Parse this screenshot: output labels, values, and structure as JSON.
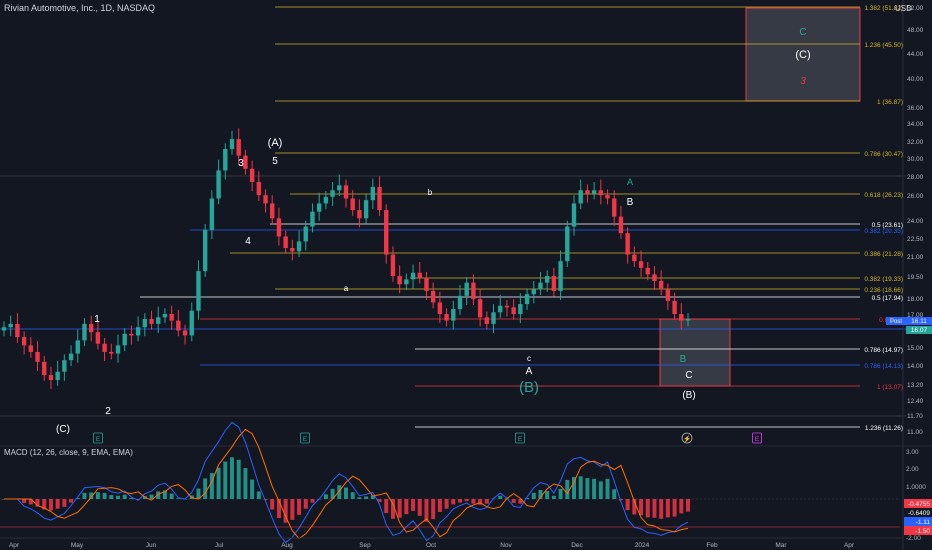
{
  "header": {
    "title": "Rivian Automotive, Inc., 1D, NASDAQ",
    "currency": "USD"
  },
  "macd": {
    "label": "MACD (12, 26, close, 9, EMA, EMA)",
    "readouts": [
      "-0.4755",
      "-0.6409",
      "-1.11",
      "-1.50"
    ],
    "scale": [
      "3.00",
      "2.00",
      "1.0000",
      "0.00",
      "-1.00",
      "-2.00"
    ]
  },
  "price_scale": [
    "52.00",
    "48.00",
    "44.00",
    "40.00",
    "36.00",
    "34.00",
    "32.00",
    "30.00",
    "28.00",
    "26.00",
    "24.00",
    "22.50",
    "21.00",
    "19.50",
    "18.00",
    "17.00",
    "15.00",
    "14.00",
    "13.20",
    "12.40",
    "11.70",
    "11.00"
  ],
  "price_tags": {
    "last": "16.11",
    "post_label": "Post",
    "post": "16.11",
    "close": "16.07"
  },
  "time_axis": [
    "Apr",
    "May",
    "Jun",
    "Jul",
    "Aug",
    "Sep",
    "Oct",
    "Nov",
    "Dec",
    "2024",
    "Feb",
    "Mar",
    "Apr"
  ],
  "fib_levels": [
    {
      "label": "1.382 (51.82)",
      "color": "#d4b629"
    },
    {
      "label": "1.236 (45.50)",
      "color": "#d4b629"
    },
    {
      "label": "1 (36.87)",
      "color": "#d4b629"
    },
    {
      "label": "0.786 (30.47)",
      "color": "#d4b629"
    },
    {
      "label": "0.618 (26.23)",
      "color": "#d4b629"
    },
    {
      "label": "0.5 (23.61)",
      "color": "#ffffff"
    },
    {
      "label": "0.382 (20.35)",
      "color": "#2962ff"
    },
    {
      "label": "0.386 (21.28)",
      "color": "#d4b629"
    },
    {
      "label": "0.382 (19.33)",
      "color": "#d4b629"
    },
    {
      "label": "0.236 (18.66)",
      "color": "#d4b629"
    },
    {
      "label": "0.5 (17.94)",
      "color": "#ffffff"
    },
    {
      "label": "0.618 (1",
      "color": "#f23645"
    },
    {
      "label": "0.786 (14.97)",
      "color": "#ffffff"
    },
    {
      "label": "0.786 (14.13)",
      "color": "#2962ff"
    },
    {
      "label": "1 (13.07)",
      "color": "#f23645"
    },
    {
      "label": "1.236 (11.26)",
      "color": "#ffffff"
    }
  ],
  "wave_labels": [
    {
      "text": "(A)",
      "color": "#ffffff"
    },
    {
      "text": "3",
      "color": "#ffffff"
    },
    {
      "text": "5",
      "color": "#ffffff"
    },
    {
      "text": "4",
      "color": "#ffffff"
    },
    {
      "text": "b",
      "color": "#ffffff"
    },
    {
      "text": "a",
      "color": "#ffffff"
    },
    {
      "text": "A",
      "color": "#26a69a"
    },
    {
      "text": "B",
      "color": "#ffffff"
    },
    {
      "text": "1",
      "color": "#ffffff"
    },
    {
      "text": "2",
      "color": "#ffffff"
    },
    {
      "text": "(C)",
      "color": "#ffffff"
    },
    {
      "text": "c",
      "color": "#ffffff"
    },
    {
      "text": "A",
      "color": "#ffffff"
    },
    {
      "text": "(B)",
      "color": "#26a69a"
    },
    {
      "text": "B",
      "color": "#26a69a"
    },
    {
      "text": "C",
      "color": "#ffffff"
    },
    {
      "text": "(B)",
      "color": "#ffffff"
    },
    {
      "text": "C",
      "color": "#26a69a"
    },
    {
      "text": "(C)",
      "color": "#ffffff"
    },
    {
      "text": "3",
      "color": "#f23645"
    }
  ],
  "event_markers": [
    {
      "text": "E",
      "color": "#26a69a"
    },
    {
      "text": "E",
      "color": "#26a69a"
    },
    {
      "text": "E",
      "color": "#26a69a"
    },
    {
      "text": "⚡",
      "color": "#b2b5be"
    },
    {
      "text": "E",
      "color": "#e040fb"
    }
  ],
  "colors": {
    "background": "#131722",
    "up": "#26a69a",
    "down": "#f23645",
    "fib": "#d4b629",
    "blue": "#2962ff",
    "macd_line": "#2962ff",
    "signal_line": "#ff6d00"
  },
  "chart_data": {
    "type": "line",
    "series": [
      {
        "values": [
          15.6,
          15.8,
          15.0,
          14.5,
          14.1,
          13.5,
          12.7,
          12.4,
          12.9,
          13.6,
          14.0,
          14.8,
          15.8,
          15.3,
          14.6,
          14.1,
          14.0,
          14.5,
          15.2,
          15.1,
          15.6,
          16.1,
          15.8,
          16.2,
          16.4,
          16.0,
          15.4,
          15.1,
          16.6,
          19.0,
          21.5,
          23.4,
          25.1,
          26.4,
          27.0,
          26.0,
          25.2,
          24.4,
          23.6,
          23.1,
          22.2,
          21.1,
          20.4,
          20.2,
          20.8,
          21.7,
          22.6,
          23.1,
          23.5,
          23.9,
          24.2,
          23.4,
          22.7,
          22.2,
          23.3,
          24.1,
          22.7,
          20.0,
          18.7,
          18.2,
          18.5,
          18.9,
          18.6,
          17.8,
          17.1,
          16.4,
          16.0,
          16.7,
          17.5,
          18.3,
          17.3,
          16.2,
          15.8,
          16.5,
          16.9,
          16.8,
          16.4,
          17.0,
          17.6,
          17.9,
          18.3,
          18.7,
          17.8,
          19.6,
          21.7,
          23.1,
          23.9,
          23.7,
          23.9,
          23.6,
          23.4,
          22.3,
          21.3,
          20.0,
          19.6,
          19.2,
          18.8,
          18.4,
          17.9,
          17.2,
          16.4,
          16.0,
          16.1
        ]
      }
    ]
  }
}
